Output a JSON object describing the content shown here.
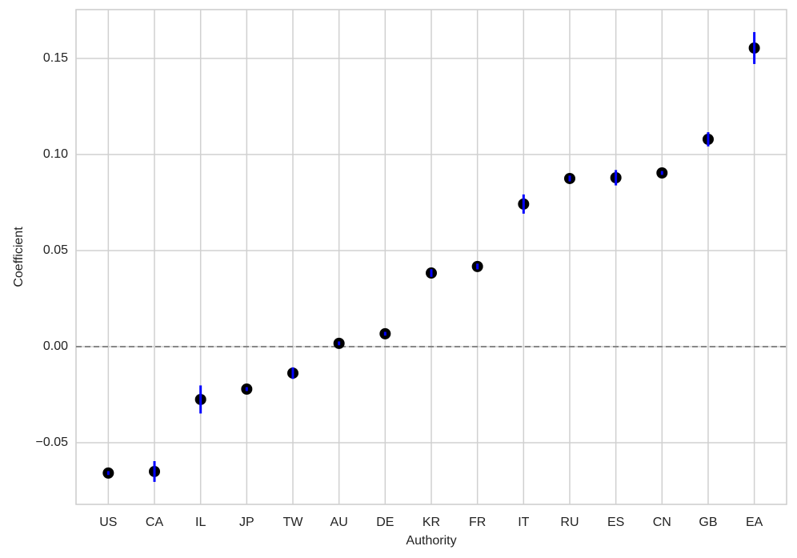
{
  "chart_data": {
    "type": "errorpoint",
    "x_label": "Authority",
    "y_label": "Coefficient",
    "categories": [
      "US",
      "CA",
      "IL",
      "JP",
      "TW",
      "AU",
      "DE",
      "KR",
      "FR",
      "IT",
      "RU",
      "ES",
      "CN",
      "GB",
      "EA"
    ],
    "values": [
      -0.0658,
      -0.065,
      -0.0275,
      -0.0221,
      -0.0138,
      0.0017,
      0.0067,
      0.0383,
      0.0417,
      0.0742,
      0.0875,
      0.0879,
      0.0904,
      0.1079,
      0.1554
    ],
    "errors": [
      0.001,
      0.0054,
      0.0073,
      0.001,
      0.003,
      0.001,
      0.001,
      0.002,
      0.0015,
      0.005,
      0.0015,
      0.004,
      0.001,
      0.0037,
      0.0083
    ],
    "color": "#000000",
    "error_color": "#0000ff",
    "ylim": [
      -0.0821,
      0.1754
    ],
    "yticks": [
      {
        "value": -0.05,
        "label": "−0.05"
      },
      {
        "value": 0,
        "label": "0.00"
      },
      0.05,
      {
        "value": 0.1,
        "label": "0.10"
      },
      0.15
    ],
    "hline": 0,
    "grid": true
  }
}
